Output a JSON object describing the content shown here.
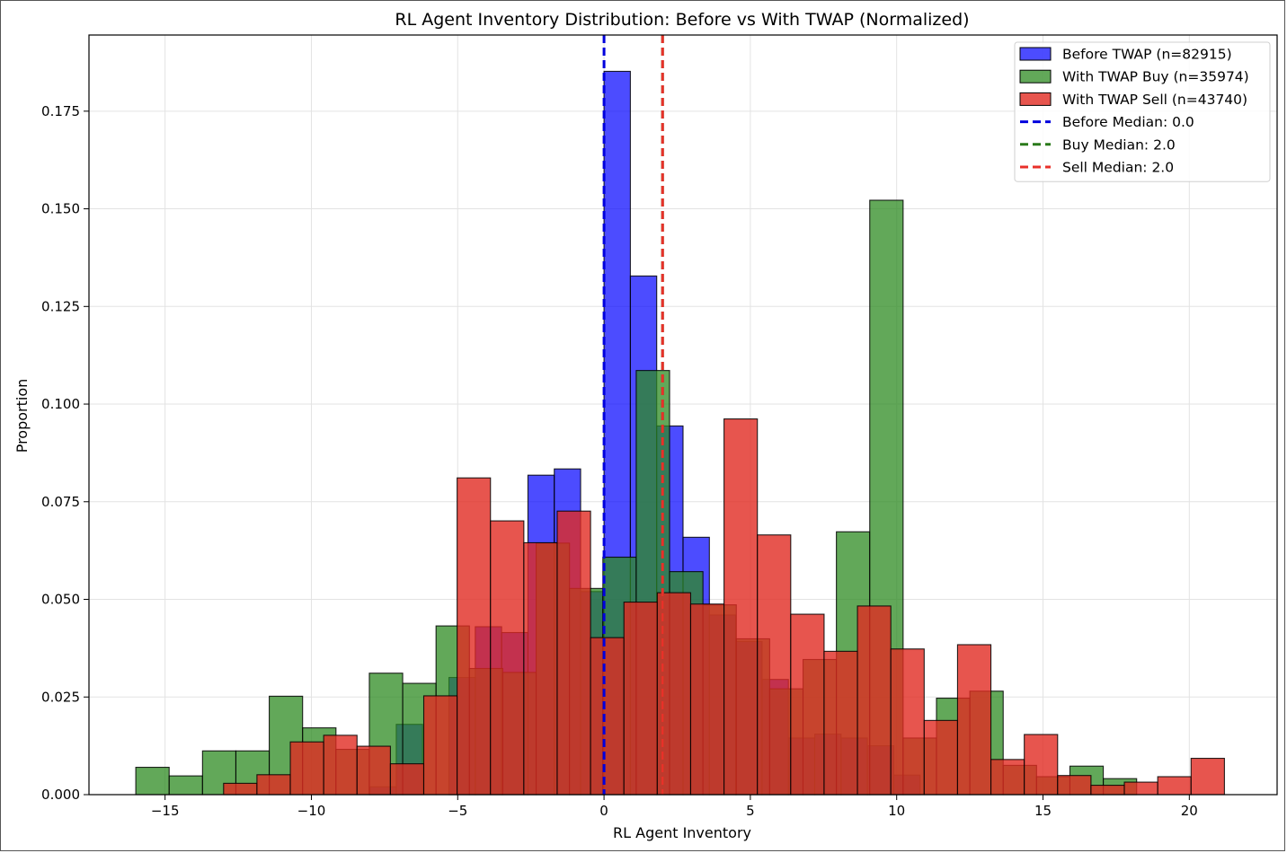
{
  "chart_data": {
    "type": "bar",
    "title": "RL Agent Inventory Distribution: Before vs With TWAP (Normalized)",
    "xlabel": "RL Agent Inventory",
    "ylabel": "Proportion",
    "xlim": [
      -17.6,
      23.0
    ],
    "ylim": [
      0.0,
      0.1945
    ],
    "x_ticks": [
      -15,
      -10,
      -5,
      0,
      5,
      10,
      15,
      20
    ],
    "x_tick_labels": [
      "−15",
      "−10",
      "−5",
      "0",
      "5",
      "10",
      "15",
      "20"
    ],
    "y_ticks": [
      0.0,
      0.025,
      0.05,
      0.075,
      0.1,
      0.125,
      0.15,
      0.175
    ],
    "y_tick_labels": [
      "0.000",
      "0.025",
      "0.050",
      "0.075",
      "0.100",
      "0.125",
      "0.150",
      "0.175"
    ],
    "grid": true,
    "legend_position": "top-right",
    "series": [
      {
        "name": "Before TWAP (n=82915)",
        "color": "#0000ff",
        "alpha": 0.7,
        "bins": [
          {
            "x0": -14.0,
            "x1": -13.0,
            "value": 0.0
          },
          {
            "x0": -8.0,
            "x1": -7.1,
            "value": 0.002
          },
          {
            "x0": -7.1,
            "x1": -6.2,
            "value": 0.018
          },
          {
            "x0": -5.3,
            "x1": -4.4,
            "value": 0.03
          },
          {
            "x0": -4.4,
            "x1": -3.5,
            "value": 0.043
          },
          {
            "x0": -3.5,
            "x1": -2.6,
            "value": 0.0415
          },
          {
            "x0": -2.6,
            "x1": -1.7,
            "value": 0.0818
          },
          {
            "x0": -1.7,
            "x1": -0.8,
            "value": 0.0834
          },
          {
            "x0": -0.8,
            "x1": 0.0,
            "value": 0.052
          },
          {
            "x0": 0.0,
            "x1": 0.9,
            "value": 0.1852
          },
          {
            "x0": 0.9,
            "x1": 1.8,
            "value": 0.1328
          },
          {
            "x0": 1.8,
            "x1": 2.7,
            "value": 0.0944
          },
          {
            "x0": 2.7,
            "x1": 3.6,
            "value": 0.0659
          },
          {
            "x0": 3.6,
            "x1": 4.5,
            "value": 0.046
          },
          {
            "x0": 4.5,
            "x1": 5.4,
            "value": 0.0392
          },
          {
            "x0": 5.4,
            "x1": 6.3,
            "value": 0.0295
          },
          {
            "x0": 6.3,
            "x1": 7.2,
            "value": 0.0145
          },
          {
            "x0": 7.2,
            "x1": 8.1,
            "value": 0.0155
          },
          {
            "x0": 8.1,
            "x1": 9.0,
            "value": 0.0145
          },
          {
            "x0": 9.0,
            "x1": 9.9,
            "value": 0.0125
          },
          {
            "x0": 9.9,
            "x1": 10.8,
            "value": 0.005
          }
        ]
      },
      {
        "name": "With TWAP Buy (n=35974)",
        "color": "#2e8b22",
        "alpha": 0.75,
        "bins": [
          {
            "x0": -16.0,
            "x1": -14.86,
            "value": 0.007
          },
          {
            "x0": -14.86,
            "x1": -13.72,
            "value": 0.0048
          },
          {
            "x0": -13.72,
            "x1": -12.58,
            "value": 0.0112
          },
          {
            "x0": -12.58,
            "x1": -11.44,
            "value": 0.0112
          },
          {
            "x0": -11.44,
            "x1": -10.3,
            "value": 0.0252
          },
          {
            "x0": -10.3,
            "x1": -9.16,
            "value": 0.0171
          },
          {
            "x0": -9.16,
            "x1": -8.02,
            "value": 0.0116
          },
          {
            "x0": -8.02,
            "x1": -6.88,
            "value": 0.0311
          },
          {
            "x0": -6.88,
            "x1": -5.74,
            "value": 0.0285
          },
          {
            "x0": -5.74,
            "x1": -4.6,
            "value": 0.0432
          },
          {
            "x0": -4.6,
            "x1": -3.46,
            "value": 0.0323
          },
          {
            "x0": -3.46,
            "x1": -2.32,
            "value": 0.0313
          },
          {
            "x0": -2.32,
            "x1": -1.18,
            "value": 0.0644
          },
          {
            "x0": -1.18,
            "x1": -0.04,
            "value": 0.0528
          },
          {
            "x0": -0.04,
            "x1": 1.1,
            "value": 0.0608
          },
          {
            "x0": 1.1,
            "x1": 2.24,
            "value": 0.1086
          },
          {
            "x0": 2.24,
            "x1": 3.38,
            "value": 0.0571
          },
          {
            "x0": 3.38,
            "x1": 4.52,
            "value": 0.0486
          },
          {
            "x0": 4.52,
            "x1": 5.66,
            "value": 0.0399
          },
          {
            "x0": 5.66,
            "x1": 6.8,
            "value": 0.0271
          },
          {
            "x0": 6.8,
            "x1": 7.94,
            "value": 0.0346
          },
          {
            "x0": 7.94,
            "x1": 9.08,
            "value": 0.0673
          },
          {
            "x0": 9.08,
            "x1": 10.22,
            "value": 0.1522
          },
          {
            "x0": 10.22,
            "x1": 11.36,
            "value": 0.0145
          },
          {
            "x0": 11.36,
            "x1": 12.5,
            "value": 0.0247
          },
          {
            "x0": 12.5,
            "x1": 13.64,
            "value": 0.0265
          },
          {
            "x0": 13.64,
            "x1": 14.78,
            "value": 0.0075
          },
          {
            "x0": 14.78,
            "x1": 15.92,
            "value": 0.0046
          },
          {
            "x0": 15.92,
            "x1": 17.06,
            "value": 0.0073
          },
          {
            "x0": 17.06,
            "x1": 18.2,
            "value": 0.0041
          }
        ]
      },
      {
        "name": "With TWAP Sell (n=43740)",
        "color": "#e12a22",
        "alpha": 0.8,
        "bins": [
          {
            "x0": -13.0,
            "x1": -11.86,
            "value": 0.0029
          },
          {
            "x0": -11.86,
            "x1": -10.72,
            "value": 0.0051
          },
          {
            "x0": -10.72,
            "x1": -9.58,
            "value": 0.0135
          },
          {
            "x0": -9.58,
            "x1": -8.44,
            "value": 0.0152
          },
          {
            "x0": -8.44,
            "x1": -7.3,
            "value": 0.0124
          },
          {
            "x0": -7.3,
            "x1": -6.16,
            "value": 0.0079
          },
          {
            "x0": -6.16,
            "x1": -5.02,
            "value": 0.0253
          },
          {
            "x0": -5.02,
            "x1": -3.88,
            "value": 0.0811
          },
          {
            "x0": -3.88,
            "x1": -2.74,
            "value": 0.0701
          },
          {
            "x0": -2.74,
            "x1": -1.6,
            "value": 0.0645
          },
          {
            "x0": -1.6,
            "x1": -0.46,
            "value": 0.0726
          },
          {
            "x0": -0.46,
            "x1": 0.68,
            "value": 0.0402
          },
          {
            "x0": 0.68,
            "x1": 1.82,
            "value": 0.0493
          },
          {
            "x0": 1.82,
            "x1": 2.96,
            "value": 0.0517
          },
          {
            "x0": 2.96,
            "x1": 4.1,
            "value": 0.0488
          },
          {
            "x0": 4.1,
            "x1": 5.24,
            "value": 0.0962
          },
          {
            "x0": 5.24,
            "x1": 6.38,
            "value": 0.0665
          },
          {
            "x0": 6.38,
            "x1": 7.52,
            "value": 0.0462
          },
          {
            "x0": 7.52,
            "x1": 8.66,
            "value": 0.0367
          },
          {
            "x0": 8.66,
            "x1": 9.8,
            "value": 0.0483
          },
          {
            "x0": 9.8,
            "x1": 10.94,
            "value": 0.0373
          },
          {
            "x0": 10.94,
            "x1": 12.08,
            "value": 0.019
          },
          {
            "x0": 12.08,
            "x1": 13.22,
            "value": 0.0384
          },
          {
            "x0": 13.22,
            "x1": 14.36,
            "value": 0.009
          },
          {
            "x0": 14.36,
            "x1": 15.5,
            "value": 0.0154
          },
          {
            "x0": 15.5,
            "x1": 16.64,
            "value": 0.0049
          },
          {
            "x0": 16.64,
            "x1": 17.78,
            "value": 0.0024
          },
          {
            "x0": 17.78,
            "x1": 18.92,
            "value": 0.0032
          },
          {
            "x0": 18.92,
            "x1": 20.06,
            "value": 0.0046
          },
          {
            "x0": 20.06,
            "x1": 21.2,
            "value": 0.0093
          }
        ]
      }
    ],
    "medians": [
      {
        "name": "Before Median: 0.0",
        "value": 0.0,
        "color": "#0000dd"
      },
      {
        "name": "Buy Median: 2.0",
        "value": 2.0,
        "color": "#2a7a1a"
      },
      {
        "name": "Sell Median: 2.0",
        "value": 2.0,
        "color": "#e8302a"
      }
    ]
  }
}
